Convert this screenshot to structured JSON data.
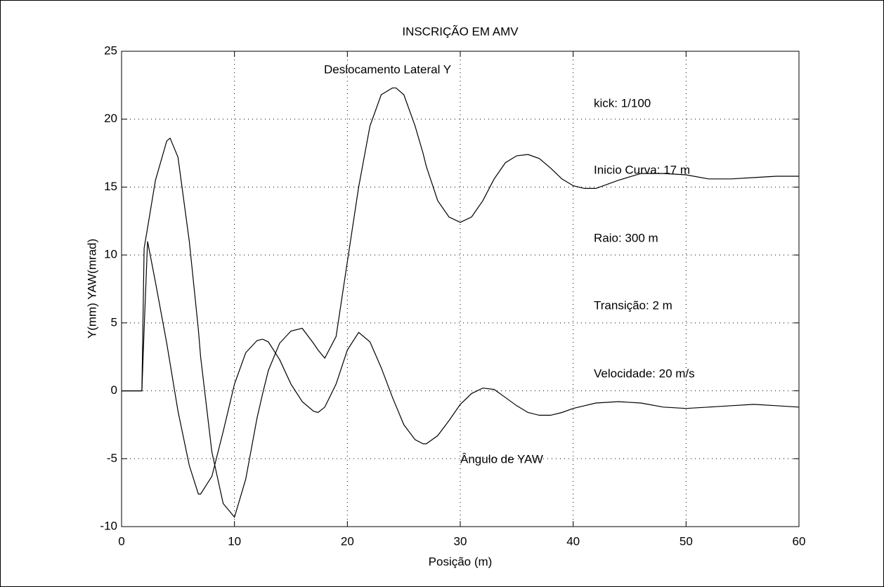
{
  "chart_data": {
    "type": "line",
    "title": "INSCRIÇÃO EM AMV",
    "x_label": "Posição (m)",
    "y_label": "Y(mm) YAW(mrad)",
    "x": [
      0,
      1,
      1.8,
      2,
      2.3,
      3,
      4,
      4.3,
      5,
      6,
      6.8,
      7,
      8,
      9,
      10,
      11,
      12,
      12.5,
      13,
      14,
      15,
      16,
      17,
      17.4,
      18,
      19,
      20,
      21,
      22,
      23,
      24,
      24.3,
      25,
      26,
      26.7,
      27,
      28,
      29,
      30,
      31,
      32,
      33,
      34,
      35,
      36,
      37,
      38,
      39,
      40,
      41,
      42,
      44,
      46,
      48,
      50,
      52,
      54,
      56,
      58,
      60
    ],
    "series": [
      {
        "name": "Deslocamento Lateral Y",
        "color": "#000000",
        "values": [
          0,
          0,
          0,
          10.5,
          12,
          15.5,
          18.4,
          18.6,
          17.2,
          11,
          4.5,
          2.5,
          -4.5,
          -8.3,
          -9.3,
          -6.5,
          -2,
          -0.2,
          1.5,
          3.5,
          4.4,
          4.6,
          3.5,
          3,
          2.4,
          4,
          9.5,
          15,
          19.5,
          21.8,
          22.3,
          22.3,
          21.8,
          19.5,
          17.5,
          16.5,
          14,
          12.8,
          12.4,
          12.8,
          14,
          15.6,
          16.8,
          17.3,
          17.4,
          17.1,
          16.4,
          15.6,
          15.1,
          14.9,
          14.9,
          15.5,
          16,
          16,
          15.9,
          15.6,
          15.6,
          15.7,
          15.8,
          15.8
        ]
      },
      {
        "name": "Ângulo de YAW",
        "color": "#000000",
        "values": [
          0,
          0,
          0,
          4.5,
          11,
          8,
          3.5,
          2,
          -1.5,
          -5.5,
          -7.6,
          -7.6,
          -6.3,
          -3,
          0.5,
          2.8,
          3.7,
          3.8,
          3.6,
          2.3,
          0.5,
          -0.8,
          -1.5,
          -1.6,
          -1.2,
          0.5,
          3,
          4.3,
          3.6,
          1.7,
          -0.5,
          -1.1,
          -2.5,
          -3.6,
          -3.9,
          -3.9,
          -3.3,
          -2.2,
          -1,
          -0.2,
          0.2,
          0.1,
          -0.5,
          -1.1,
          -1.6,
          -1.8,
          -1.8,
          -1.6,
          -1.3,
          -1.1,
          -0.9,
          -0.8,
          -0.9,
          -1.2,
          -1.3,
          -1.2,
          -1.1,
          -1,
          -1.1,
          -1.2
        ]
      }
    ],
    "annotations": [
      "kick: 1/100",
      "Inicio Curva: 17 m",
      "Raio: 300 m",
      "Transição: 2 m",
      "Velocidade: 20 m/s"
    ],
    "xlim": [
      0,
      60
    ],
    "xticks": [
      0,
      10,
      20,
      30,
      40,
      50,
      60
    ],
    "ylim": [
      -10,
      25
    ],
    "yticks": [
      -10,
      -5,
      0,
      5,
      10,
      15,
      20,
      25
    ],
    "grid": true
  }
}
